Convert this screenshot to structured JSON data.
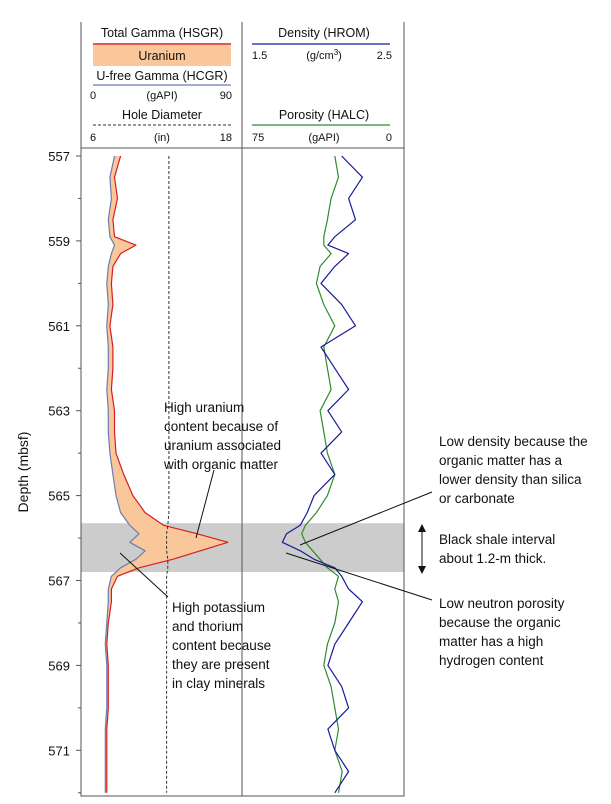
{
  "header": {
    "left_track": {
      "total_gamma_title": "Total Gamma (HSGR)",
      "uranium_label": "Uranium",
      "ufree_title": "U-free Gamma (HCGR)",
      "gamma_scale": {
        "min": "0",
        "unit": "(gAPI)",
        "max": "90"
      },
      "hole_title": "Hole Diameter",
      "hole_scale": {
        "min": "6",
        "unit": "(in)",
        "max": "18"
      }
    },
    "right_track": {
      "density_title": "Density (HROM)",
      "density_scale": {
        "min": "1.5",
        "unit": "(g/cm",
        "unit_sup": "3",
        "unit_close": ")",
        "max": "2.5"
      },
      "porosity_title": "Porosity (HALC)",
      "porosity_scale": {
        "min": "75",
        "unit": "(gAPI)",
        "max": "0"
      }
    }
  },
  "annotations": {
    "uranium": [
      "High uranium",
      "content because of",
      "uranium associated",
      "with organic matter"
    ],
    "potassium": [
      "High potassium",
      "and thorium",
      "content because",
      "they are present",
      "in clay minerals"
    ],
    "density": [
      "Low density because the",
      "organic matter has a",
      "lower density than silica",
      "or carbonate"
    ],
    "shale": [
      "Black shale interval",
      "about 1.2-m thick."
    ],
    "porosity": [
      "Low neutron porosity",
      "because the organic",
      "matter has a high",
      "hydrogen content"
    ]
  },
  "colors": {
    "uranium_fill": "#f9c79a",
    "total_gamma_line": "#d22020",
    "ufree_line": "#6b7db3",
    "density_line": "#1a1a9a",
    "porosity_line": "#2e8b2e",
    "shale_band": "#cccccc"
  },
  "chart_data": {
    "type": "line",
    "ylabel": "Depth (mbsf)",
    "ylim": [
      557,
      572
    ],
    "yticks": [
      557,
      559,
      561,
      563,
      565,
      567,
      569,
      571
    ],
    "shale_interval": [
      565.65,
      566.8
    ],
    "depth": [
      557.0,
      557.5,
      558.0,
      558.5,
      558.9,
      559.1,
      559.3,
      559.6,
      560.0,
      560.5,
      561.0,
      561.5,
      562.0,
      562.5,
      563.0,
      563.5,
      564.0,
      564.5,
      565.0,
      565.4,
      565.7,
      565.9,
      566.1,
      566.3,
      566.5,
      566.7,
      566.9,
      567.2,
      567.5,
      568.0,
      568.5,
      569.0,
      569.5,
      570.0,
      570.5,
      571.0,
      571.5,
      572.0
    ],
    "series": [
      {
        "name": "Total Gamma (HSGR)",
        "unit": "gAPI",
        "values": [
          18,
          14,
          16,
          13,
          14,
          28,
          18,
          13,
          12,
          13,
          11,
          13,
          13,
          12,
          14,
          14,
          15,
          20,
          26,
          34,
          46,
          68,
          88,
          70,
          52,
          30,
          16,
          12,
          12,
          10,
          9,
          10,
          10,
          10,
          9,
          9,
          9,
          9
        ]
      },
      {
        "name": "U-free Gamma (HCGR)",
        "unit": "gAPI",
        "values": [
          14,
          11,
          12,
          10,
          11,
          14,
          12,
          10,
          9,
          10,
          9,
          10,
          10,
          9,
          10,
          10,
          11,
          13,
          15,
          18,
          24,
          30,
          24,
          34,
          28,
          18,
          12,
          10,
          10,
          9,
          8,
          9,
          9,
          9,
          8,
          8,
          8,
          8
        ]
      },
      {
        "name": "Hole Diameter",
        "unit": "in",
        "values": [
          12.6,
          12.6,
          12.6,
          12.6,
          12.6,
          12.6,
          12.6,
          12.6,
          12.6,
          12.6,
          12.6,
          12.6,
          12.6,
          12.6,
          12.6,
          12.6,
          12.6,
          12.6,
          12.6,
          12.6,
          12.5,
          12.4,
          12.4,
          12.4,
          12.5,
          12.5,
          12.4,
          12.4,
          12.4,
          12.4,
          12.4,
          12.4,
          12.4,
          12.4,
          12.4,
          12.4,
          12.4,
          12.4
        ]
      },
      {
        "name": "Density (HROM)",
        "unit": "g/cm3",
        "values": [
          2.15,
          2.3,
          2.2,
          2.25,
          2.1,
          2.05,
          2.2,
          2.1,
          2.0,
          2.15,
          2.25,
          2.0,
          2.1,
          2.2,
          2.05,
          2.15,
          2.0,
          2.1,
          1.95,
          1.9,
          1.85,
          1.75,
          1.72,
          1.85,
          1.95,
          2.1,
          2.15,
          2.2,
          2.3,
          2.2,
          2.1,
          2.05,
          2.15,
          2.2,
          2.05,
          2.1,
          2.2,
          2.1
        ]
      },
      {
        "name": "Porosity (HALC)",
        "unit": "gAPI",
        "values": [
          30,
          28,
          32,
          34,
          36,
          36,
          32,
          38,
          40,
          36,
          30,
          36,
          34,
          32,
          38,
          36,
          34,
          30,
          34,
          40,
          46,
          48,
          46,
          42,
          38,
          34,
          28,
          30,
          28,
          30,
          34,
          36,
          32,
          30,
          28,
          30,
          26,
          28
        ]
      }
    ]
  }
}
